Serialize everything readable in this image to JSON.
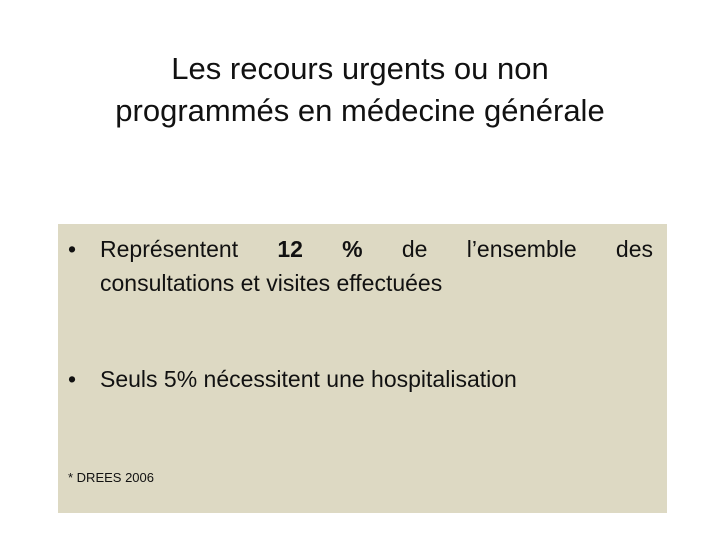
{
  "slide": {
    "title_line_1": "Les recours urgents ou non",
    "title_line_2": "programmés en médecine générale"
  },
  "content": {
    "bullet_symbol": "•",
    "bullet_1": {
      "prefix": "Représentent",
      "highlight": "12 %",
      "rest_line_1": "de l’ensemble des",
      "line_2": "consultations et visites effectuées"
    },
    "bullet_2": {
      "text": "Seuls 5% nécessitent une hospitalisation"
    },
    "source": "* DREES 2006"
  },
  "colors": {
    "box_background": "#ddd9c3",
    "text": "#111111"
  }
}
